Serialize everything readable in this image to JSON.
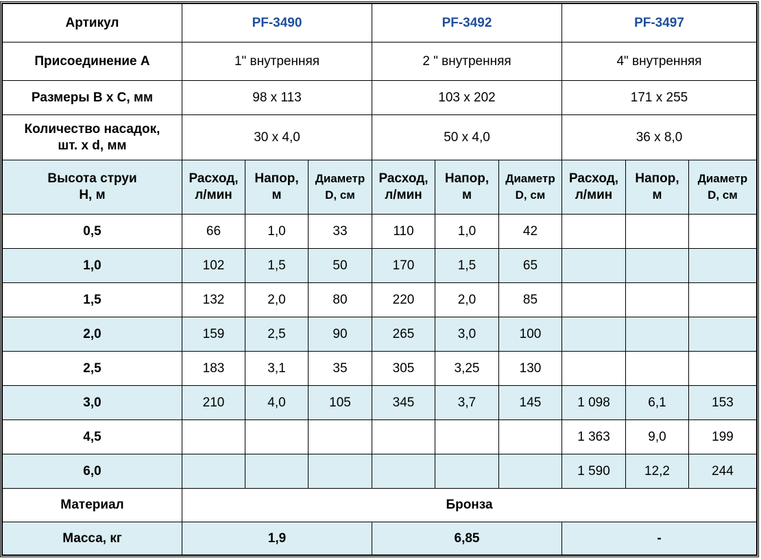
{
  "colors": {
    "row_fill": "#daeef3",
    "article": "#1f4e9c",
    "border": "#000000"
  },
  "spec": {
    "article": {
      "label": "Артикул",
      "values": [
        "PF-3490",
        "PF-3492",
        "PF-3497"
      ]
    },
    "connection": {
      "label": "Присоединение A",
      "values": [
        "1\" внутренняя",
        "2 \" внутренняя",
        "4\" внутренняя"
      ]
    },
    "size": {
      "label": "Размеры B x C, мм",
      "values": [
        "98 x 113",
        "103 x 202",
        "171 x 255"
      ]
    },
    "nozzles": {
      "label_1": "Количество насадок,",
      "label_2": "шт. x d, мм",
      "values": [
        "30 x 4,0",
        "50 x 4,0",
        "36 x 8,0"
      ]
    }
  },
  "subheader": {
    "height_1": "Высота струи",
    "height_2": "H, м",
    "cols": [
      {
        "l1": "Расход,",
        "l2": "л/мин"
      },
      {
        "l1": "Напор,",
        "l2": "м"
      },
      {
        "l1": "Диаметр",
        "l2": "D, см"
      },
      {
        "l1": "Расход,",
        "l2": "л/мин"
      },
      {
        "l1": "Напор,",
        "l2": "м"
      },
      {
        "l1": "Диаметр",
        "l2": "D, см"
      },
      {
        "l1": "Расход,",
        "l2": "л/мин"
      },
      {
        "l1": "Напор,",
        "l2": "м"
      },
      {
        "l1": "Диаметр",
        "l2": "D, см"
      }
    ]
  },
  "rows": [
    {
      "h": "0,5",
      "v": [
        "66",
        "1,0",
        "33",
        "110",
        "1,0",
        "42",
        "",
        "",
        ""
      ]
    },
    {
      "h": "1,0",
      "v": [
        "102",
        "1,5",
        "50",
        "170",
        "1,5",
        "65",
        "",
        "",
        ""
      ]
    },
    {
      "h": "1,5",
      "v": [
        "132",
        "2,0",
        "80",
        "220",
        "2,0",
        "85",
        "",
        "",
        ""
      ]
    },
    {
      "h": "2,0",
      "v": [
        "159",
        "2,5",
        "90",
        "265",
        "3,0",
        "100",
        "",
        "",
        ""
      ]
    },
    {
      "h": "2,5",
      "v": [
        "183",
        "3,1",
        "35",
        "305",
        "3,25",
        "130",
        "",
        "",
        ""
      ]
    },
    {
      "h": "3,0",
      "v": [
        "210",
        "4,0",
        "105",
        "345",
        "3,7",
        "145",
        "1 098",
        "6,1",
        "153"
      ]
    },
    {
      "h": "4,5",
      "v": [
        "",
        "",
        "",
        "",
        "",
        "",
        "1 363",
        "9,0",
        "199"
      ]
    },
    {
      "h": "6,0",
      "v": [
        "",
        "",
        "",
        "",
        "",
        "",
        "1 590",
        "12,2",
        "244"
      ]
    }
  ],
  "material": {
    "label": "Материал",
    "value": "Бронза"
  },
  "mass": {
    "label": "Масса, кг",
    "values": [
      "1,9",
      "6,85",
      "-"
    ]
  }
}
